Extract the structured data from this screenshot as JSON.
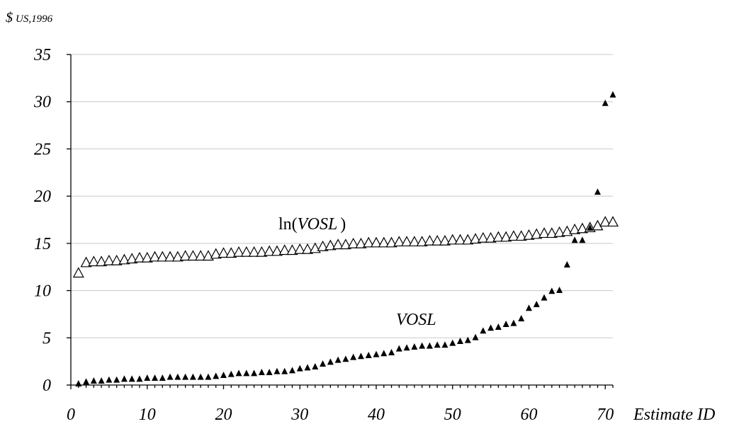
{
  "chart_data": {
    "type": "scatter",
    "y_unit_prefix": "$",
    "y_unit_suffix": "US,1996",
    "xlabel": "Estimate ID",
    "xlim": [
      0,
      71
    ],
    "ylim": [
      0,
      35
    ],
    "x_ticks": [
      0,
      10,
      20,
      30,
      40,
      50,
      60,
      70
    ],
    "y_ticks": [
      0,
      5,
      10,
      15,
      20,
      25,
      30,
      35
    ],
    "grid": "horizontal",
    "series": [
      {
        "name": "ln(VOSL)",
        "label_prefix": "ln(",
        "label_italic": "VOSL",
        "label_suffix": ")",
        "marker": "open-triangle",
        "x": [
          1,
          2,
          3,
          4,
          5,
          6,
          7,
          8,
          9,
          10,
          11,
          12,
          13,
          14,
          15,
          16,
          17,
          18,
          19,
          20,
          21,
          22,
          23,
          24,
          25,
          26,
          27,
          28,
          29,
          30,
          31,
          32,
          33,
          34,
          35,
          36,
          37,
          38,
          39,
          40,
          41,
          42,
          43,
          44,
          45,
          46,
          47,
          48,
          49,
          50,
          51,
          52,
          53,
          54,
          55,
          56,
          57,
          58,
          59,
          60,
          61,
          62,
          63,
          64,
          65,
          66,
          67,
          68,
          69,
          70,
          71
        ],
        "values": [
          11.8,
          12.9,
          13.0,
          13.0,
          13.1,
          13.1,
          13.2,
          13.3,
          13.4,
          13.4,
          13.5,
          13.5,
          13.5,
          13.5,
          13.6,
          13.6,
          13.6,
          13.6,
          13.8,
          13.9,
          13.9,
          14.0,
          14.0,
          14.0,
          14.0,
          14.1,
          14.1,
          14.2,
          14.2,
          14.3,
          14.3,
          14.4,
          14.6,
          14.7,
          14.8,
          14.8,
          14.9,
          14.9,
          15.0,
          15.0,
          15.0,
          15.0,
          15.1,
          15.1,
          15.1,
          15.1,
          15.2,
          15.2,
          15.2,
          15.3,
          15.3,
          15.3,
          15.4,
          15.5,
          15.5,
          15.6,
          15.6,
          15.7,
          15.7,
          15.8,
          15.9,
          16.0,
          16.0,
          16.1,
          16.2,
          16.4,
          16.5,
          16.6,
          16.8,
          17.2,
          17.2
        ]
      },
      {
        "name": "VOSL",
        "label_prefix": "",
        "label_italic": "VOSL",
        "label_suffix": "",
        "marker": "filled-triangle",
        "x": [
          1,
          2,
          3,
          4,
          5,
          6,
          7,
          8,
          9,
          10,
          11,
          12,
          13,
          14,
          15,
          16,
          17,
          18,
          19,
          20,
          21,
          22,
          23,
          24,
          25,
          26,
          27,
          28,
          29,
          30,
          31,
          32,
          33,
          34,
          35,
          36,
          37,
          38,
          39,
          40,
          41,
          42,
          43,
          44,
          45,
          46,
          47,
          48,
          49,
          50,
          51,
          52,
          53,
          54,
          55,
          56,
          57,
          58,
          59,
          60,
          61,
          62,
          63,
          64,
          65,
          66,
          67,
          68,
          69,
          70,
          71
        ],
        "values": [
          0.1,
          0.3,
          0.4,
          0.4,
          0.5,
          0.5,
          0.6,
          0.6,
          0.6,
          0.7,
          0.7,
          0.7,
          0.8,
          0.8,
          0.8,
          0.8,
          0.8,
          0.8,
          0.9,
          1.0,
          1.1,
          1.2,
          1.2,
          1.2,
          1.3,
          1.3,
          1.4,
          1.4,
          1.5,
          1.7,
          1.8,
          1.9,
          2.2,
          2.4,
          2.6,
          2.7,
          2.9,
          3.0,
          3.1,
          3.2,
          3.3,
          3.4,
          3.8,
          3.9,
          4.0,
          4.1,
          4.1,
          4.2,
          4.2,
          4.4,
          4.6,
          4.7,
          5.0,
          5.7,
          6.0,
          6.1,
          6.4,
          6.5,
          7.0,
          8.1,
          8.5,
          9.2,
          9.9,
          10.0,
          12.7,
          15.3,
          15.3,
          16.6,
          20.4,
          29.8,
          30.7
        ]
      }
    ]
  }
}
